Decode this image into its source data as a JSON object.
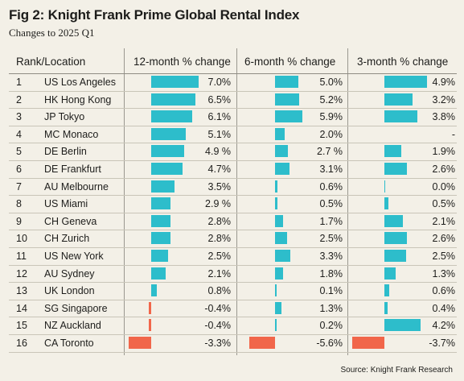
{
  "chart_data": {
    "type": "table",
    "title": "Fig 2: Knight Frank Prime Global Rental Index",
    "subtitle": "Changes to 2025 Q1",
    "columns": {
      "rank_location": "Rank/Location",
      "m12": "12-month % change",
      "m6": "6-month % change",
      "m3": "3-month % change"
    },
    "colors": {
      "positive": "#2dbdcb",
      "negative": "#f1664a"
    },
    "rows": [
      {
        "rank": "1",
        "location": "US Los Angeles",
        "m12": 7.0,
        "m12_label": "7.0%",
        "m6": 5.0,
        "m6_label": "5.0%",
        "m3": 4.9,
        "m3_label": "4.9%"
      },
      {
        "rank": "2",
        "location": "HK Hong Kong",
        "m12": 6.5,
        "m12_label": "6.5%",
        "m6": 5.2,
        "m6_label": "5.2%",
        "m3": 3.2,
        "m3_label": "3.2%"
      },
      {
        "rank": "3",
        "location": "JP Tokyo",
        "m12": 6.1,
        "m12_label": "6.1%",
        "m6": 5.9,
        "m6_label": "5.9%",
        "m3": 3.8,
        "m3_label": "3.8%"
      },
      {
        "rank": "4",
        "location": "MC Monaco",
        "m12": 5.1,
        "m12_label": "5.1%",
        "m6": 2.0,
        "m6_label": "2.0%",
        "m3": null,
        "m3_label": "-"
      },
      {
        "rank": "5",
        "location": "DE Berlin",
        "m12": 4.9,
        "m12_label": "4.9 %",
        "m6": 2.7,
        "m6_label": "2.7 %",
        "m3": 1.9,
        "m3_label": "1.9%"
      },
      {
        "rank": "6",
        "location": "DE Frankfurt",
        "m12": 4.7,
        "m12_label": "4.7%",
        "m6": 3.1,
        "m6_label": "3.1%",
        "m3": 2.6,
        "m3_label": "2.6%"
      },
      {
        "rank": "7",
        "location": "AU Melbourne",
        "m12": 3.5,
        "m12_label": "3.5%",
        "m6": 0.6,
        "m6_label": "0.6%",
        "m3": 0.0,
        "m3_label": "0.0%"
      },
      {
        "rank": "8",
        "location": "US Miami",
        "m12": 2.9,
        "m12_label": "2.9 %",
        "m6": 0.5,
        "m6_label": "0.5%",
        "m3": 0.5,
        "m3_label": "0.5%"
      },
      {
        "rank": "9",
        "location": "CH Geneva",
        "m12": 2.8,
        "m12_label": "2.8%",
        "m6": 1.7,
        "m6_label": "1.7%",
        "m3": 2.1,
        "m3_label": "2.1%"
      },
      {
        "rank": "10",
        "location": "CH Zurich",
        "m12": 2.8,
        "m12_label": "2.8%",
        "m6": 2.5,
        "m6_label": "2.5%",
        "m3": 2.6,
        "m3_label": "2.6%"
      },
      {
        "rank": "11",
        "location": "US New York",
        "m12": 2.5,
        "m12_label": "2.5%",
        "m6": 3.3,
        "m6_label": "3.3%",
        "m3": 2.5,
        "m3_label": "2.5%"
      },
      {
        "rank": "12",
        "location": "AU Sydney",
        "m12": 2.1,
        "m12_label": "2.1%",
        "m6": 1.8,
        "m6_label": "1.8%",
        "m3": 1.3,
        "m3_label": "1.3%"
      },
      {
        "rank": "13",
        "location": "UK London",
        "m12": 0.8,
        "m12_label": "0.8%",
        "m6": 0.1,
        "m6_label": "0.1%",
        "m3": 0.6,
        "m3_label": "0.6%"
      },
      {
        "rank": "14",
        "location": "SG Singapore",
        "m12": -0.4,
        "m12_label": "-0.4%",
        "m6": 1.3,
        "m6_label": "1.3%",
        "m3": 0.4,
        "m3_label": "0.4%"
      },
      {
        "rank": "15",
        "location": "NZ Auckland",
        "m12": -0.4,
        "m12_label": "-0.4%",
        "m6": 0.2,
        "m6_label": "0.2%",
        "m3": 4.2,
        "m3_label": "4.2%"
      },
      {
        "rank": "16",
        "location": "CA Toronto",
        "m12": -3.3,
        "m12_label": "-3.3%",
        "m6": -5.6,
        "m6_label": "-5.6%",
        "m3": -3.7,
        "m3_label": "-3.7%"
      }
    ],
    "source": "Source: Knight Frank Research"
  }
}
